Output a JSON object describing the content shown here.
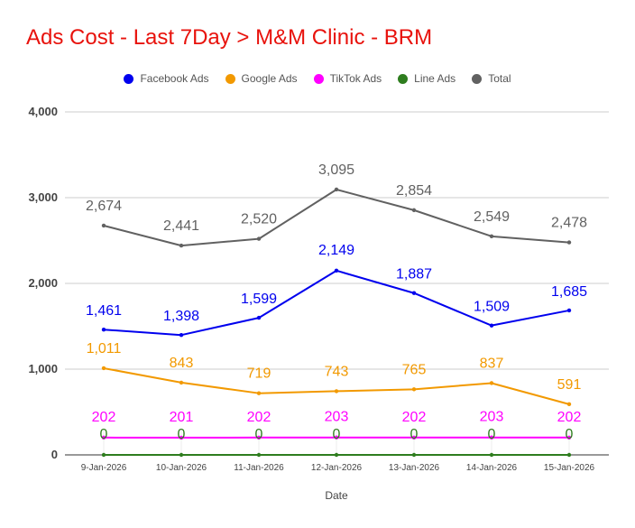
{
  "chart_data": {
    "type": "line",
    "title": "Ads Cost - Last 7Day > M&M Clinic - BRM",
    "xlabel": "Date",
    "ylabel": "",
    "ylim": [
      0,
      4000
    ],
    "yticks": [
      0,
      1000,
      2000,
      3000,
      4000
    ],
    "ytick_labels": [
      "0",
      "1,000",
      "2,000",
      "3,000",
      "4,000"
    ],
    "legend_position": "top-center",
    "grid": true,
    "categories": [
      "9-Jan-2026",
      "10-Jan-2026",
      "11-Jan-2026",
      "12-Jan-2026",
      "13-Jan-2026",
      "14-Jan-2026",
      "15-Jan-2026"
    ],
    "series": [
      {
        "name": "Facebook Ads",
        "color": "#0000ee",
        "values": [
          1461,
          1398,
          1599,
          2149,
          1887,
          1509,
          1685
        ],
        "labels": [
          "1,461",
          "1,398",
          "1,599",
          "2,149",
          "1,887",
          "1,509",
          "1,685"
        ]
      },
      {
        "name": "Google Ads",
        "color": "#f29900",
        "values": [
          1011,
          843,
          719,
          743,
          765,
          837,
          591
        ],
        "labels": [
          "1,011",
          "843",
          "719",
          "743",
          "765",
          "837",
          "591"
        ]
      },
      {
        "name": "TikTok Ads",
        "color": "#ff00ff",
        "values": [
          202,
          201,
          202,
          203,
          202,
          203,
          202
        ],
        "labels": [
          "202",
          "201",
          "202",
          "203",
          "202",
          "203",
          "202"
        ]
      },
      {
        "name": "Line Ads",
        "color": "#2e7d1e",
        "values": [
          0,
          0,
          0,
          0,
          0,
          0,
          0
        ],
        "labels": [
          "0",
          "0",
          "0",
          "0",
          "0",
          "0",
          "0"
        ]
      },
      {
        "name": "Total",
        "color": "#616161",
        "values": [
          2674,
          2441,
          2520,
          3095,
          2854,
          2549,
          2478
        ],
        "labels": [
          "2,674",
          "2,441",
          "2,520",
          "3,095",
          "2,854",
          "2,549",
          "2,478"
        ]
      }
    ]
  }
}
